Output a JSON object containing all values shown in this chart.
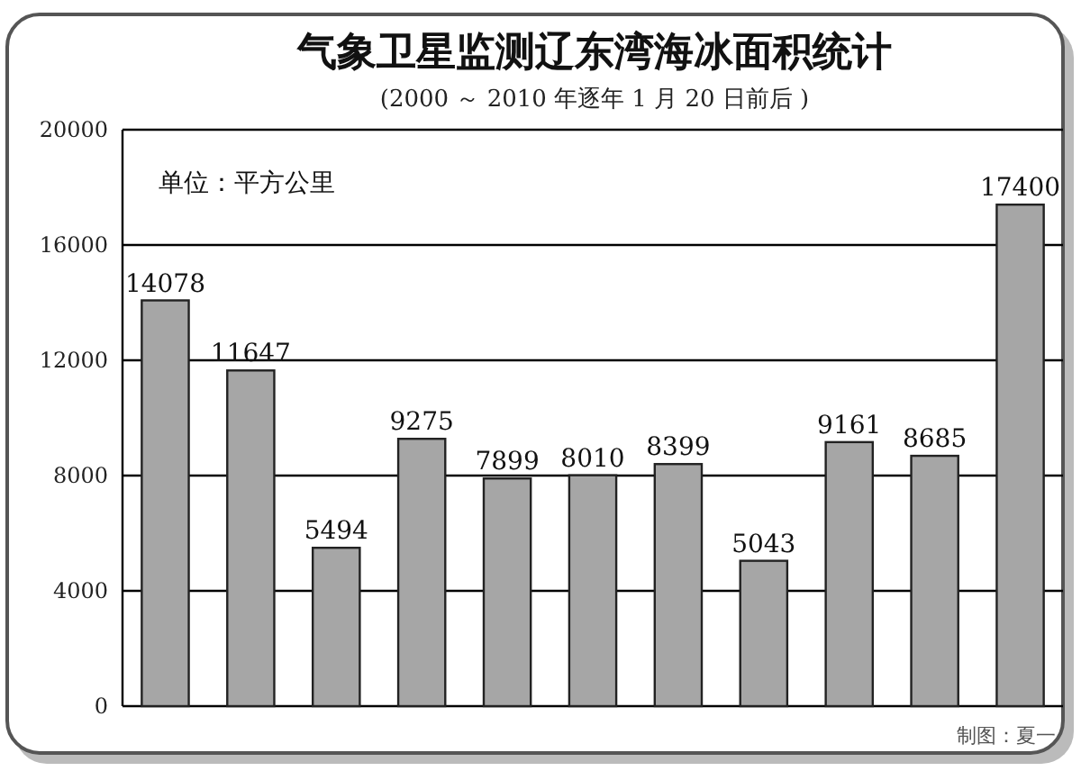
{
  "chart_data": {
    "type": "bar",
    "title": "气象卫星监测辽东湾海冰面积统计",
    "subtitle": "(2000 ～ 2010 年逐年 1 月 20 日前后 )",
    "categories": [
      null,
      null,
      null,
      null,
      null,
      null,
      null,
      null,
      null,
      null,
      null
    ],
    "values": [
      14078,
      11647,
      5494,
      9275,
      7899,
      8010,
      8399,
      5043,
      9161,
      8685,
      17400
    ],
    "color": "#a6a6a6",
    "ylim": [
      0,
      20000
    ],
    "yticks": [
      0,
      4000,
      8000,
      12000,
      16000,
      20000
    ],
    "grid": "y",
    "data_labels": true,
    "annotations": [
      "单位：平方公里",
      "制图：夏一"
    ]
  }
}
